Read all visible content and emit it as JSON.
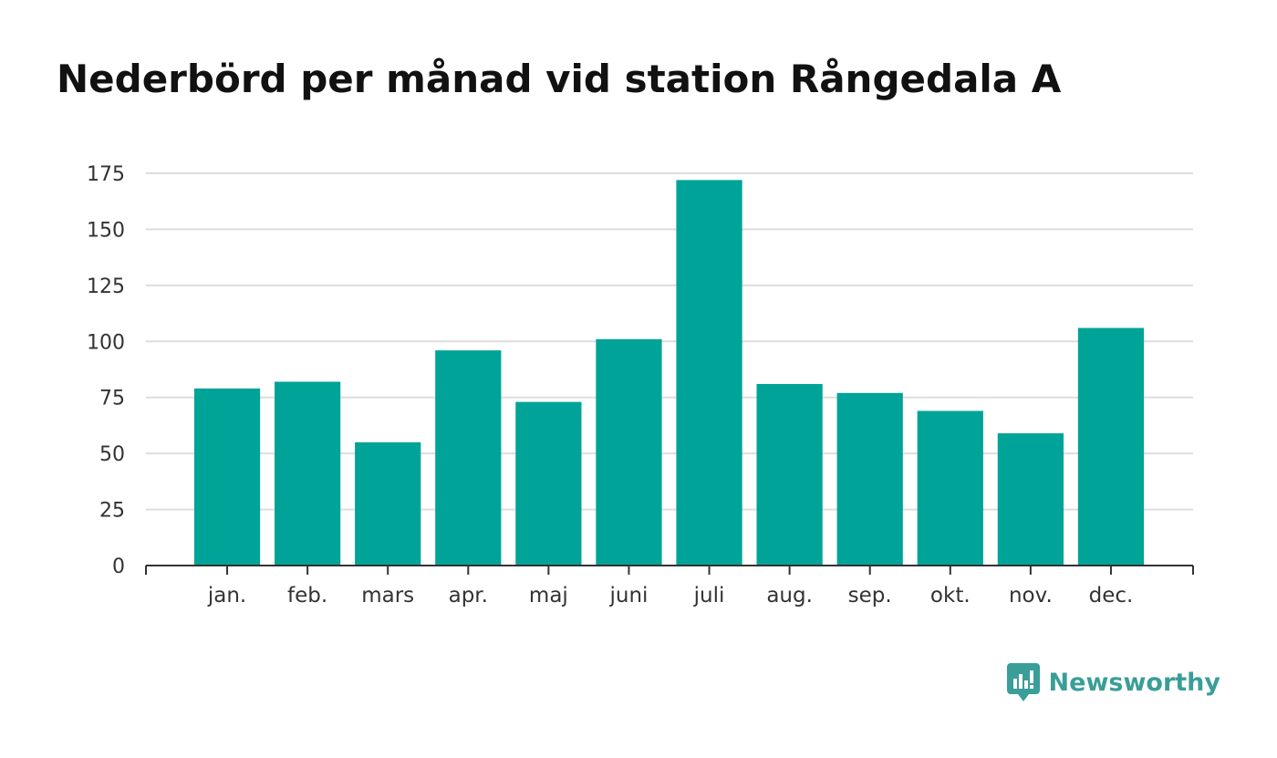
{
  "title": "Nederbörd per månad vid station Rångedala A",
  "brand": {
    "name": "Newsworthy",
    "color": "#3a9e98",
    "icon": "chart-logo-icon"
  },
  "chart_data": {
    "type": "bar",
    "title": "Nederbörd per månad vid station Rångedala A",
    "categories": [
      "jan.",
      "feb.",
      "mars",
      "apr.",
      "maj",
      "juni",
      "juli",
      "aug.",
      "sep.",
      "okt.",
      "nov.",
      "dec."
    ],
    "values": [
      79,
      82,
      55,
      96,
      73,
      101,
      172,
      81,
      77,
      69,
      59,
      106
    ],
    "ylim": [
      0,
      175
    ],
    "yticks": [
      0,
      25,
      50,
      75,
      100,
      125,
      150,
      175
    ],
    "xlabel": "",
    "ylabel": "",
    "grid": true,
    "bar_color": "#00a398"
  }
}
